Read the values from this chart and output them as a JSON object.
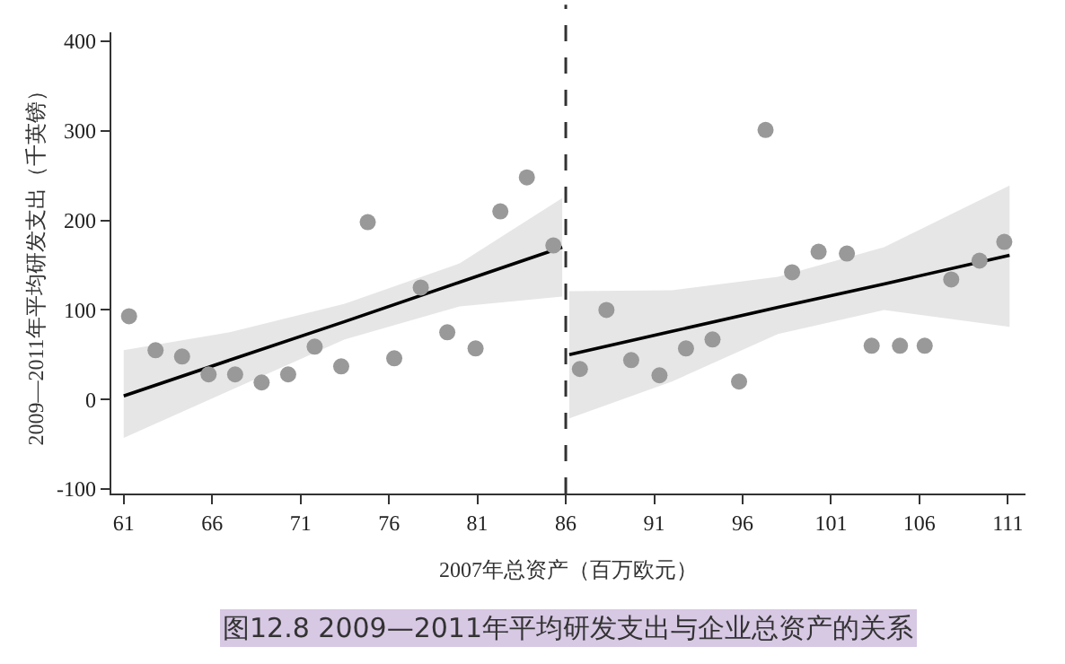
{
  "chart_data": {
    "type": "scatter",
    "xlabel": "2007年总资产（百万欧元）",
    "ylabel": "2009—2011年平均研发支出（千英镑）",
    "annotations": [
      "图12.8 2009—2011年平均研发支出与企业总资产的关系"
    ],
    "series": [
      {
        "color": "#999999",
        "marker": "circle",
        "x": [
          61.3,
          62.8,
          64.3,
          65.8,
          67.3,
          68.8,
          70.3,
          71.8,
          73.3,
          74.8,
          76.3,
          77.8,
          79.3,
          80.9,
          82.3,
          83.8,
          85.3,
          86.8,
          88.3,
          89.7,
          91.3,
          92.8,
          94.3,
          95.8,
          97.3,
          98.8,
          100.3,
          101.9,
          103.3,
          104.9,
          106.3,
          107.8,
          109.4,
          110.8
        ],
        "values": [
          93,
          55,
          48,
          28,
          28,
          19,
          28,
          59,
          37,
          198,
          46,
          125,
          75,
          57,
          210,
          248,
          172,
          34,
          100,
          44,
          27,
          57,
          67,
          20,
          301,
          142,
          165,
          163,
          60,
          60,
          60,
          134,
          155,
          176
        ]
      },
      {
        "type": "line",
        "color": "#000000",
        "marker": "none",
        "line_style": "solid",
        "x": [
          61,
          67,
          73.5,
          80,
          85.8
        ],
        "values": [
          4,
          44,
          87,
          131,
          170
        ],
        "lower": [
          -43,
          10,
          67,
          104,
          115
        ],
        "upper": [
          55,
          75,
          107,
          152,
          225
        ]
      },
      {
        "type": "line",
        "color": "#000000",
        "marker": "none",
        "line_style": "solid",
        "x": [
          86.2,
          92,
          98,
          104,
          111.1
        ],
        "values": [
          50,
          76,
          103,
          129,
          161
        ],
        "lower": [
          -21,
          20,
          73,
          100,
          81
        ],
        "upper": [
          121,
          122,
          137,
          170,
          239
        ]
      }
    ],
    "ref_lines": [
      {
        "axis": "x",
        "value": 86,
        "color": "#333333",
        "line_style": "dashed"
      }
    ],
    "xlim": [
      60.3,
      112
    ],
    "xticks": [
      61,
      66,
      71,
      76,
      81,
      86,
      91,
      96,
      101,
      106,
      111
    ],
    "ylim": [
      -105,
      410
    ],
    "yticks": [
      -100,
      0,
      100,
      200,
      300,
      400
    ],
    "legend": false
  }
}
